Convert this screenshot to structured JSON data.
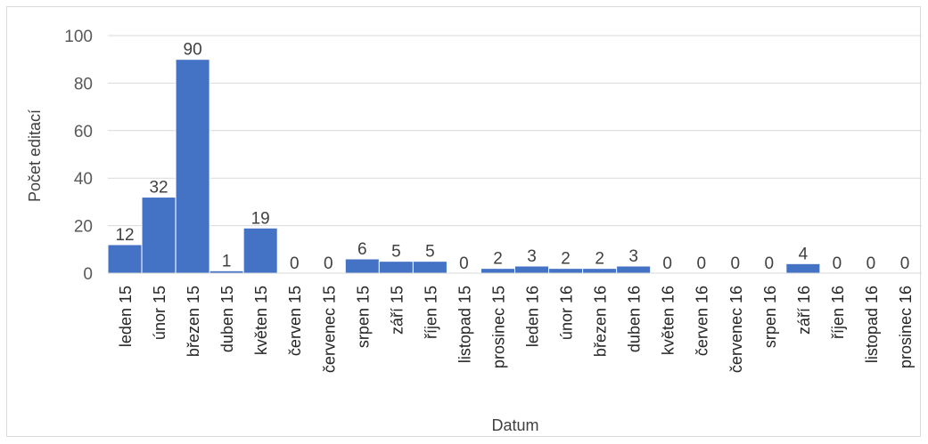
{
  "chart_data": {
    "type": "bar",
    "title": "",
    "xlabel": "Datum",
    "ylabel": "Počet editací",
    "ylim": [
      0,
      100
    ],
    "yticks": [
      0,
      20,
      40,
      60,
      80,
      100
    ],
    "grid": true,
    "bar_color": "#4472c4",
    "categories": [
      "leden 15",
      "únor 15",
      "březen 15",
      "duben 15",
      "květen 15",
      "červen 15",
      "červenec 15",
      "srpen 15",
      "září 15",
      "říjen 15",
      "listopad 15",
      "prosinec 15",
      "leden 16",
      "únor 16",
      "březen 16",
      "duben 16",
      "květen 16",
      "červen 16",
      "červenec 16",
      "srpen 16",
      "září 16",
      "říjen 16",
      "listopad 16",
      "prosinec 16"
    ],
    "values": [
      12,
      32,
      90,
      1,
      19,
      0,
      0,
      6,
      5,
      5,
      0,
      2,
      3,
      2,
      2,
      3,
      0,
      0,
      0,
      0,
      4,
      0,
      0,
      0
    ]
  }
}
